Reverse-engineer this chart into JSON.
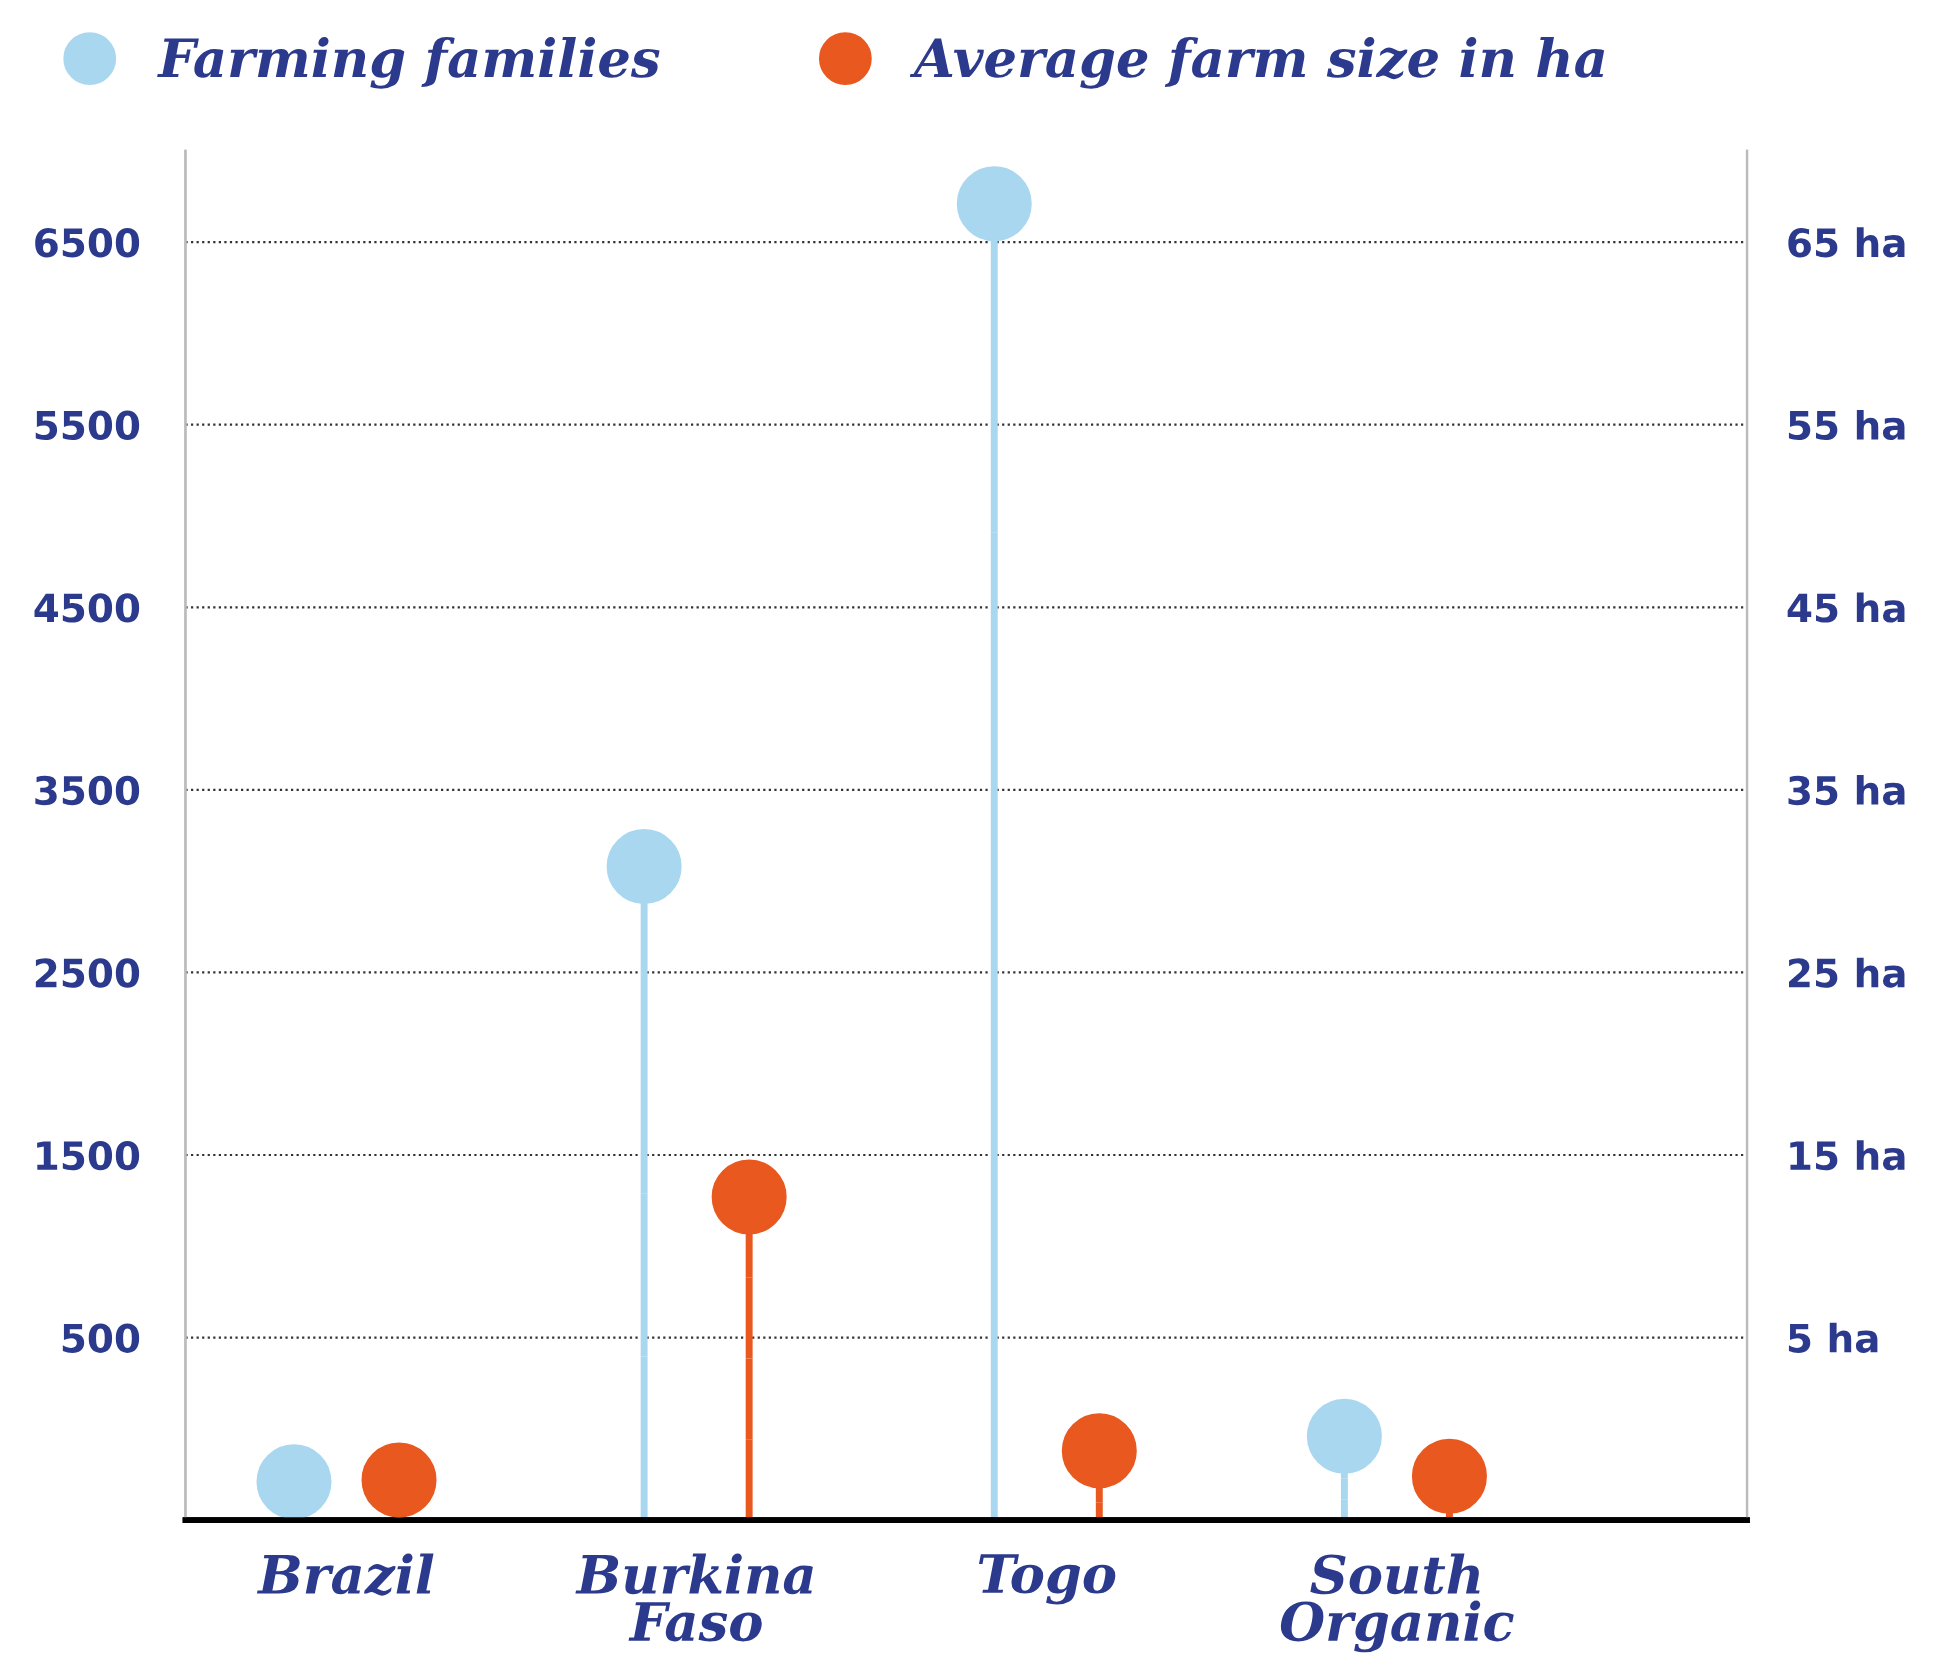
{
  "chart_data": {
    "type": "lollipop",
    "categories": [
      "Brazil",
      "Burkina Faso",
      "Togo",
      "South Organic"
    ],
    "series": [
      {
        "name": "Farming families",
        "color": "#a9d7f0",
        "values": [
          -290,
          3080,
          6710,
          -40
        ]
      },
      {
        "name": "Average farm size in ha",
        "color": "#e8581f",
        "axis": "y2",
        "values": [
          -2.8,
          12.7,
          -1.2,
          -2.6
        ]
      }
    ],
    "ylim": [
      -500,
      7000
    ],
    "yticks": [
      500,
      1500,
      2500,
      3500,
      4500,
      5500,
      6500
    ],
    "y2lim": [
      -5,
      70
    ],
    "y2ticks": [
      {
        "value": 5,
        "label": "5 ha"
      },
      {
        "value": 15,
        "label": "15 ha"
      },
      {
        "value": 25,
        "label": "25 ha"
      },
      {
        "value": 35,
        "label": "35 ha"
      },
      {
        "value": 45,
        "label": "45 ha"
      },
      {
        "value": 55,
        "label": "55 ha"
      },
      {
        "value": 65,
        "label": "65 ha"
      }
    ],
    "grid": "y",
    "legend": "top left",
    "marker": "circle"
  }
}
